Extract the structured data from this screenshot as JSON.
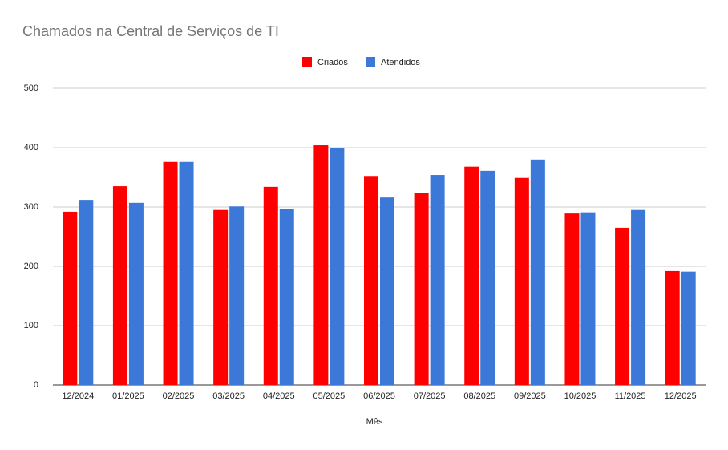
{
  "chart_data": {
    "type": "bar",
    "title": "Chamados na Central de Serviços de TI",
    "x_label": "Mês",
    "categories": [
      "12/2024",
      "01/2025",
      "02/2025",
      "03/2025",
      "04/2025",
      "05/2025",
      "06/2025",
      "07/2025",
      "08/2025",
      "09/2025",
      "10/2025",
      "11/2025",
      "12/2025"
    ],
    "series": [
      {
        "name": "Criados",
        "color": "#ff0000",
        "values": [
          292,
          335,
          376,
          295,
          334,
          404,
          351,
          324,
          368,
          349,
          289,
          265,
          192
        ]
      },
      {
        "name": "Atendidos",
        "color": "#3c78d8",
        "values": [
          312,
          307,
          376,
          301,
          296,
          399,
          316,
          354,
          361,
          380,
          291,
          295,
          191
        ]
      }
    ],
    "ylim": [
      0,
      500
    ],
    "yticks": [
      0,
      100,
      200,
      300,
      400,
      500
    ],
    "grid": true,
    "legend": "top"
  }
}
